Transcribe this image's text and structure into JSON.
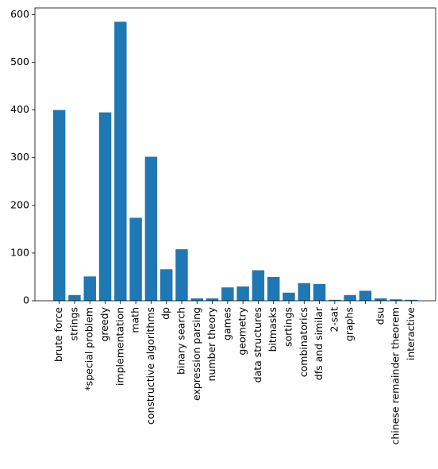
{
  "chart_data": {
    "type": "bar",
    "categories": [
      "brute force",
      "strings",
      "*special problem",
      "greedy",
      "implementation",
      "math",
      "constructive algorithms",
      "dp",
      "binary search",
      "expression parsing",
      "number theory",
      "games",
      "geometry",
      "data structures",
      "bitmasks",
      "sortings",
      "combinatorics",
      "dfs and similar",
      "2-sat",
      "graphs",
      null,
      "dsu",
      "chinese remainder theorem",
      "interactive"
    ],
    "values": [
      400,
      12,
      51,
      395,
      585,
      174,
      302,
      66,
      108,
      5,
      5,
      28,
      30,
      64,
      50,
      17,
      37,
      35,
      2,
      12,
      21,
      5,
      3,
      2
    ],
    "color": "#1f77b4",
    "ylim": [
      0,
      614
    ],
    "yticks": [
      0,
      100,
      200,
      300,
      400,
      500,
      600
    ]
  }
}
